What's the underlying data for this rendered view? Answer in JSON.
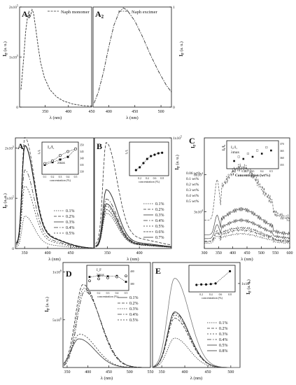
{
  "chart_data": [
    {
      "id": "A1",
      "panel_label": "A",
      "panel_sub": "1",
      "type": "line",
      "ylabel": "I",
      "ylabel_sub": "F",
      "ylabel_unit": "(a. u.)",
      "xlabel": "λ (nm)",
      "xlim": [
        295,
        450
      ],
      "ylim": [
        0,
        2
      ],
      "x_ticks": [
        "350",
        "400",
        "450"
      ],
      "y_ticks": [
        "0",
        "1x10",
        "2x10"
      ],
      "y_tick_exp": "5",
      "legend_entries": [
        "Naph monomer"
      ],
      "series": [
        {
          "name": "Naph monomer",
          "points": [
            [
              298,
              0.35
            ],
            [
              304,
              1.0
            ],
            [
              308,
              1.5
            ],
            [
              312,
              1.8
            ],
            [
              315,
              1.92
            ],
            [
              318,
              1.8
            ],
            [
              322,
              1.95
            ],
            [
              325,
              1.88
            ],
            [
              330,
              1.55
            ],
            [
              335,
              1.2
            ],
            [
              340,
              0.9
            ],
            [
              348,
              0.6
            ],
            [
              360,
              0.35
            ],
            [
              375,
              0.2
            ],
            [
              390,
              0.12
            ],
            [
              410,
              0.06
            ],
            [
              430,
              0.03
            ],
            [
              450,
              0.02
            ]
          ]
        }
      ]
    },
    {
      "id": "A2",
      "panel_label": "A",
      "panel_sub": "2",
      "type": "line",
      "ylabel": "I",
      "ylabel_sub": "F",
      "ylabel_unit": "(a. u.)",
      "xlabel": "λ (nm)",
      "xlim": [
        370,
        520
      ],
      "ylim": [
        0,
        1
      ],
      "x_ticks": [
        "400",
        "450",
        "500"
      ],
      "y_ticks": [
        "0",
        "1"
      ],
      "legend_entries": [
        "Naph excimer"
      ],
      "series": [
        {
          "name": "Naph excimer",
          "points": [
            [
              372,
              0.04
            ],
            [
              380,
              0.15
            ],
            [
              390,
              0.35
            ],
            [
              400,
              0.6
            ],
            [
              410,
              0.82
            ],
            [
              420,
              0.95
            ],
            [
              428,
              0.99
            ],
            [
              435,
              0.97
            ],
            [
              450,
              0.86
            ],
            [
              465,
              0.7
            ],
            [
              480,
              0.52
            ],
            [
              495,
              0.36
            ],
            [
              510,
              0.22
            ],
            [
              520,
              0.15
            ]
          ]
        }
      ]
    },
    {
      "id": "A",
      "panel_label": "A",
      "type": "line",
      "ylabel": "I",
      "ylabel_sub": "F",
      "ylabel_unit": "(a. u.)",
      "xlabel": "λ (nm)",
      "xlim": [
        330,
        500
      ],
      "ylim": [
        0,
        2.2
      ],
      "x_ticks": [
        "350",
        "400",
        "450"
      ],
      "y_ticks": [
        "0",
        "1x10",
        "2x10"
      ],
      "y_tick_exp": "5",
      "legend_entries": [
        "0.1%",
        "0.2%",
        "0.3%",
        "0.4%",
        "0.5%"
      ],
      "series": [
        {
          "name": "0.1%",
          "peak": 0.6,
          "dash": "1.5,1.5"
        },
        {
          "name": "0.2%",
          "peak": 2.05,
          "dash": "4,2"
        },
        {
          "name": "0.3%",
          "peak": 1.9,
          "dash": ""
        },
        {
          "name": "0.4%",
          "peak": 1.45,
          "dash": "6,2,1.5,2"
        },
        {
          "name": "0.5%",
          "peak": 1.15,
          "dash": "2,2"
        }
      ],
      "inset": {
        "xlabel": "concentration (%)",
        "ylabel_left": "I₂/I₁",
        "ylabel_right": "λmax",
        "x_ticks": [
          "0.1",
          "0.2",
          "0.3",
          "0.4",
          "0.5"
        ],
        "right_ticks": [
          "330",
          "335",
          "340",
          "345",
          "350"
        ],
        "legend": [
          "I₂/I₁",
          "λmax"
        ],
        "series": [
          {
            "name": "I₂/I₁",
            "x": [
              0.1,
              0.2,
              0.3,
              0.4,
              0.5
            ],
            "y": [
              0.25,
              0.35,
              0.45,
              0.55,
              0.85
            ]
          },
          {
            "name": "λmax",
            "x": [
              0.1,
              0.2,
              0.3,
              0.4,
              0.5
            ],
            "y": [
              336,
              338,
              342,
              345,
              347
            ]
          }
        ]
      }
    },
    {
      "id": "B",
      "panel_label": "B",
      "type": "line",
      "ylabel": "I",
      "ylabel_sub": "F",
      "ylabel_unit": "(a. u.)",
      "xlabel": "λ (nm)",
      "xlim": [
        330,
        450
      ],
      "ylim": [
        0,
        1
      ],
      "x_ticks": [
        "350",
        "400"
      ],
      "y_ticks": [
        "1x10"
      ],
      "y_tick_exp": "5",
      "legend_entries": [
        "0.1%",
        "0.2%",
        "0.3%",
        "0.4%",
        "0.5%",
        "0.6%",
        "0.7%"
      ],
      "series": [
        {
          "name": "0.1%",
          "peak": 0.3,
          "dash": "1.5,1.5"
        },
        {
          "name": "0.2%",
          "peak": 0.9,
          "dash": "4,2"
        },
        {
          "name": "0.3%",
          "peak": 0.5,
          "dash": ""
        },
        {
          "name": "0.4%",
          "peak": 0.42,
          "dash": "6,2,1.5,2"
        },
        {
          "name": "0.5%",
          "peak": 0.36,
          "dash": "2,2"
        },
        {
          "name": "0.6%",
          "peak": 0.33,
          "dash": "3,1"
        },
        {
          "name": "0.7%",
          "peak": 0.38,
          "dash": ""
        }
      ],
      "inset": {
        "xlabel": "concentration (%)",
        "ylabel_left": "I₂/I₁",
        "x_ticks": [
          "0.2",
          "0.4",
          "0.6",
          "0.8"
        ],
        "series": [
          {
            "name": "I₂/I₁",
            "x": [
              0.1,
              0.2,
              0.3,
              0.4,
              0.5,
              0.6,
              0.7,
              0.8
            ],
            "y": [
              0.1,
              0.2,
              0.35,
              0.5,
              0.6,
              0.65,
              0.7,
              0.72
            ]
          }
        ]
      }
    },
    {
      "id": "C",
      "panel_label": "C",
      "type": "line",
      "ylabel": "I",
      "ylabel_sub": "F",
      "xlabel": "λ (nm)",
      "xlim": [
        300,
        600
      ],
      "ylim": [
        0,
        9
      ],
      "x_ticks": [
        "300",
        "350",
        "400",
        "450",
        "500",
        "550",
        "600"
      ],
      "y_ticks": [
        "3x10",
        "6x10"
      ],
      "y_tick_exp": "4",
      "legend_entries": [
        "0.06 wt%",
        "0.1 wt%",
        "0.2 wt%",
        "0.3 wt%",
        "0.4 wt%",
        "0.5 wt%"
      ],
      "series": [
        {
          "name": "0.06 wt%",
          "level": 1.2,
          "dash": "1.5,1.5"
        },
        {
          "name": "0.1 wt%",
          "level": 6.6,
          "dash": "3,1.5"
        },
        {
          "name": "0.2 wt%",
          "level": 2.3,
          "dash": ""
        },
        {
          "name": "0.3 wt%",
          "level": 1.7,
          "dash": "4,2"
        },
        {
          "name": "0.4 wt%",
          "level": 1.5,
          "dash": "6,2,1.5,2"
        },
        {
          "name": "0.5 wt%",
          "level": 3.2,
          "dash": ""
        }
      ],
      "inset": {
        "xlabel": "Concentration (wt%)",
        "ylabel_left": "I₂/I₁",
        "x_ticks": [
          "0.1",
          "0.2",
          "0.3",
          "0.4",
          "0.5"
        ],
        "right_ticks": [
          "355",
          "360",
          "365",
          "370"
        ],
        "legend": [
          "I₂/I₁",
          "λmax"
        ]
      }
    },
    {
      "id": "D",
      "panel_label": "D",
      "type": "line",
      "ylabel": "I",
      "ylabel_sub": "F",
      "ylabel_unit": "(a. u.)",
      "xlabel": "λ (nm)",
      "xlim": [
        340,
        550
      ],
      "ylim": [
        0,
        1.1
      ],
      "x_ticks": [
        "350",
        "400",
        "450",
        "500",
        "550"
      ],
      "y_ticks": [
        "5x10",
        "1x10"
      ],
      "y_tick_exp": "6",
      "legend_entries": [
        "0.1%",
        "0.2%",
        "0.3%",
        "0.4%",
        "0.5%"
      ],
      "series": [
        {
          "name": "0.1%",
          "peak": 0.3,
          "dash": ""
        },
        {
          "name": "0.2%",
          "peak": 0.87,
          "dash": "4,2"
        },
        {
          "name": "0.3%",
          "peak": 0.83,
          "dash": "1.5,1.5"
        },
        {
          "name": "0.4%",
          "peak": 0.8,
          "dash": "6,2,1.5,2"
        },
        {
          "name": "0.5%",
          "peak": 0.35,
          "dash": "2,2"
        }
      ],
      "inset": {
        "xlabel": "concentration (%)",
        "ylabel_left": "I_F",
        "ylabel_right": "λmax",
        "x_ticks": [
          "0.1",
          "0.2",
          "0.3",
          "0.4",
          "0.5"
        ],
        "right_ticks": [
          "380",
          "400"
        ],
        "legend": [
          "I_F",
          "λmax"
        ]
      }
    },
    {
      "id": "E",
      "panel_label": "E",
      "type": "line",
      "ylabel": "I",
      "ylabel_sub": "F",
      "ylabel_unit": "(a. u.)",
      "xlabel": "λ (nm)",
      "xlim": [
        330,
        520
      ],
      "ylim": [
        0,
        1
      ],
      "x_ticks": [
        "350",
        "400",
        "450",
        "500"
      ],
      "y_ticks": [
        "1x10"
      ],
      "y_tick_exp": "6",
      "legend_entries": [
        "0.1%",
        "0.2%",
        "0.3%",
        "0.4%",
        "0.5%",
        "0.8%"
      ],
      "series": [
        {
          "name": "0.1%",
          "peak": 0.28,
          "dash": "1.5,1.5"
        },
        {
          "name": "0.2%",
          "peak": 0.47,
          "dash": "4,2"
        },
        {
          "name": "0.3%",
          "peak": 0.5,
          "dash": "2,2"
        },
        {
          "name": "0.4%",
          "peak": 0.52,
          "dash": "6,2,1.5,2"
        },
        {
          "name": "0.5%",
          "peak": 0.53,
          "dash": ""
        },
        {
          "name": "0.8%",
          "peak": 0.85,
          "dash": ""
        }
      ],
      "inset": {
        "xlabel": "concentration (%)",
        "ylabel_left": "I_F",
        "x_ticks": [
          "0.2",
          "0.4",
          "0.6",
          "0.8"
        ],
        "series": [
          {
            "name": "I_F",
            "x": [
              0.1,
              0.2,
              0.3,
              0.4,
              0.5,
              0.8
            ],
            "y": [
              0.2,
              0.22,
              0.22,
              0.24,
              0.27,
              0.85
            ]
          }
        ]
      }
    }
  ]
}
